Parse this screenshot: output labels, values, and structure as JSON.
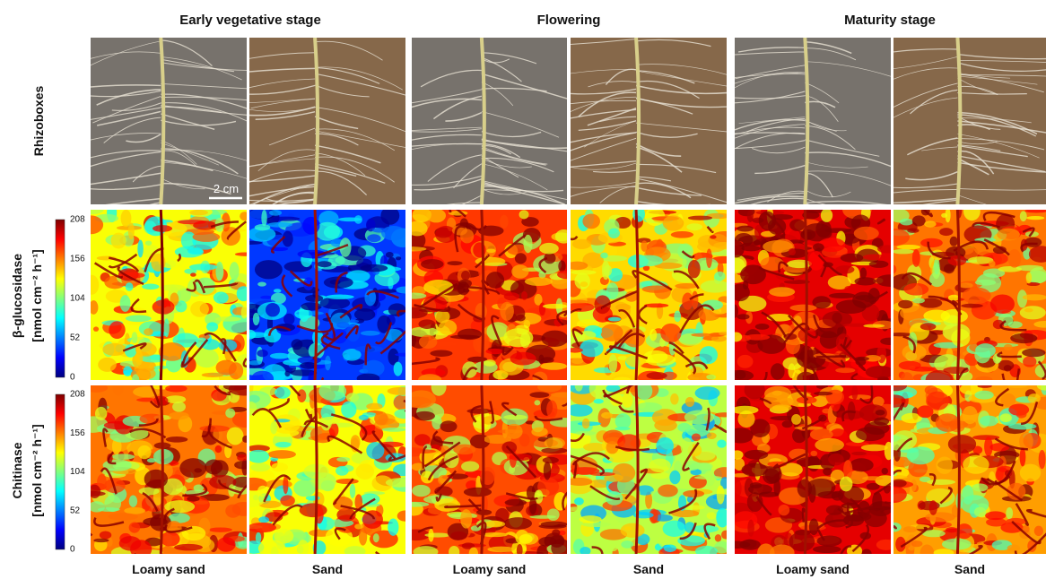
{
  "stages": [
    "Early vegetative stage",
    "Flowering",
    "Maturity stage"
  ],
  "rows": [
    "Rhizoboxes",
    "β-glucosidase",
    "Chitinase"
  ],
  "unit": "[nmol cm⁻² h⁻¹]",
  "soils": [
    "Loamy sand",
    "Sand",
    "Loamy sand",
    "Sand",
    "Loamy sand",
    "Sand"
  ],
  "colorbar_ticks": [
    0,
    52,
    104,
    156,
    208
  ],
  "scale_bar": "2 cm"
}
